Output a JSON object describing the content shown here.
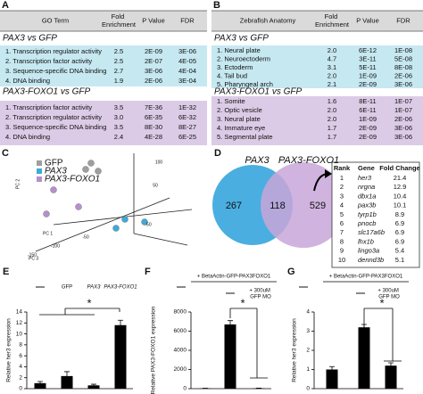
{
  "panels": {
    "A": {
      "label": "A",
      "columns": [
        "GO Term",
        "Fold Enrichment",
        "P Value",
        "FDR"
      ],
      "sections": [
        {
          "title": "PAX3 vs GFP",
          "rows": [
            [
              "1. Transcription regulator activity",
              "2.5",
              "2E-09",
              "3E-06"
            ],
            [
              "2. Transcription factor activity",
              "2.5",
              "2E-07",
              "4E-05"
            ],
            [
              "3. Sequence-specific DNA binding",
              "2.7",
              "3E-06",
              "4E-04"
            ],
            [
              "4. DNA binding",
              "1.9",
              "2E-06",
              "3E-04"
            ]
          ]
        },
        {
          "title": "PAX3-FOXO1 vs GFP",
          "rows": [
            [
              "1. Transcription factor activity",
              "3.5",
              "7E-36",
              "1E-32"
            ],
            [
              "2. Transcription regulator activity",
              "3.0",
              "6E-35",
              "6E-32"
            ],
            [
              "3. Sequence-specific DNA binding",
              "3.5",
              "8E-30",
              "8E-27"
            ],
            [
              "4. DNA binding",
              "2.4",
              "4E-28",
              "6E-25"
            ]
          ]
        }
      ]
    },
    "B": {
      "label": "B",
      "columns": [
        "Zebrafish Anatomy",
        "Fold Enrichment",
        "P Value",
        "FDR"
      ],
      "sections": [
        {
          "title": "PAX3 vs GFP",
          "rows": [
            [
              "1. Neural plate",
              "2.0",
              "6E-12",
              "1E-08"
            ],
            [
              "2. Neuroectoderm",
              "4.7",
              "3E-11",
              "5E-08"
            ],
            [
              "3. Ectoderm",
              "3.1",
              "5E-11",
              "8E-08"
            ],
            [
              "4. Tail bud",
              "2.0",
              "1E-09",
              "2E-06"
            ],
            [
              "5. Pharyngeal arch",
              "2.1",
              "2E-09",
              "3E-06"
            ]
          ]
        },
        {
          "title": "PAX3-FOXO1 vs GFP",
          "rows": [
            [
              "1. Somite",
              "1.6",
              "8E-11",
              "1E-07"
            ],
            [
              "2. Optic vesicle",
              "2.0",
              "6E-11",
              "1E-07"
            ],
            [
              "3. Neural plate",
              "2.0",
              "1E-09",
              "2E-06"
            ],
            [
              "4. Immature eye",
              "1.7",
              "2E-09",
              "3E-06"
            ],
            [
              "5. Segmental plate",
              "1.7",
              "2E-09",
              "3E-06"
            ]
          ]
        }
      ]
    },
    "C": {
      "label": "C",
      "legend": [
        {
          "name": "GFP",
          "color": "#9e9e9e"
        },
        {
          "name": "PAX3",
          "color": "#3fa9d8"
        },
        {
          "name": "PAX3-FOXO1",
          "color": "#b68fcc"
        }
      ],
      "axis_labels": [
        "PC 1",
        "PC 2",
        "PC 3"
      ],
      "tick_labels": [
        "100",
        "50",
        "-50",
        "-100",
        "-50",
        "-150"
      ]
    },
    "D": {
      "label": "D",
      "sets": [
        "PAX3",
        "PAX3-FOXO1"
      ],
      "counts": [
        "267",
        "118",
        "529"
      ],
      "table": {
        "columns": [
          "Rank",
          "Gene",
          "Fold Change"
        ],
        "rows": [
          [
            "1",
            "her3",
            "21.4"
          ],
          [
            "2",
            "nrgna",
            "12.9"
          ],
          [
            "3",
            "dbx1a",
            "10.4"
          ],
          [
            "4",
            "pax3b",
            "10.1"
          ],
          [
            "5",
            "tyrp1b",
            "8.9"
          ],
          [
            "6",
            "pnocb",
            "6.9"
          ],
          [
            "7",
            "slc17a6b",
            "6.9"
          ],
          [
            "8",
            "lhx1b",
            "6.9"
          ],
          [
            "9",
            "lingo3a",
            "5.4"
          ],
          [
            "10",
            "dennd3b",
            "5.1"
          ]
        ]
      }
    }
  },
  "chart_data": [
    {
      "type": "bar",
      "label": "E",
      "ylabel": "Relative her3 expression",
      "categories": [
        "—",
        "GFP",
        "PAX3",
        "PAX3-FOXO1"
      ],
      "values": [
        1.0,
        2.3,
        0.6,
        11.6
      ],
      "errors": [
        0.3,
        0.8,
        0.2,
        0.9
      ],
      "color": "#000000",
      "ylim": [
        0,
        14
      ],
      "yticks": [
        0,
        2,
        4,
        6,
        8,
        10,
        12,
        14
      ],
      "annotations": [
        "*"
      ]
    },
    {
      "type": "bar",
      "label": "F",
      "ylabel": "Relative PAX3-FOXO1 expression",
      "group_label": "+ BetaActin-GFP-PAX3FOXO1",
      "categories": [
        "—",
        "—",
        "+ 300uM GFP MO"
      ],
      "values": [
        30,
        6700,
        40
      ],
      "errors": [
        20,
        400,
        20
      ],
      "color": "#000000",
      "ylim": [
        0,
        8000
      ],
      "yticks": [
        0,
        2000,
        4000,
        6000,
        8000
      ],
      "annotations": [
        "*"
      ]
    },
    {
      "type": "bar",
      "label": "G",
      "ylabel": "Relative her3 expression",
      "group_label": "+ BetaActin-GFP-PAX3FOXO1",
      "categories": [
        "—",
        "—",
        "+ 300uM GFP MO"
      ],
      "values": [
        1.0,
        3.2,
        1.2
      ],
      "errors": [
        0.15,
        0.15,
        0.15
      ],
      "color": "#000000",
      "ylim": [
        0,
        4
      ],
      "yticks": [
        0,
        1,
        2,
        3,
        4
      ],
      "annotations": [
        "*"
      ]
    }
  ]
}
